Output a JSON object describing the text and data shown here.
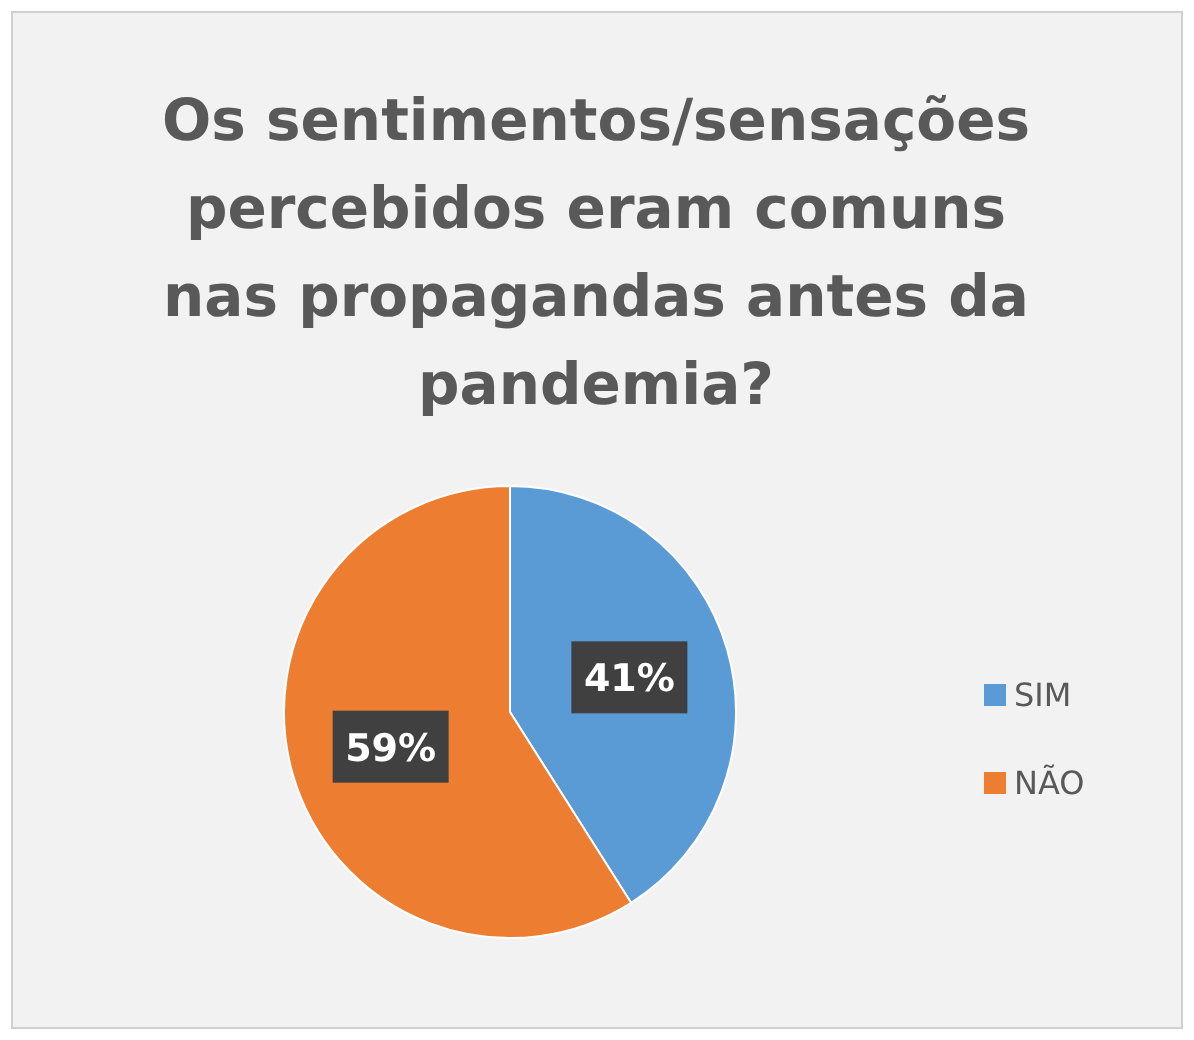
{
  "chart_data": {
    "type": "pie",
    "title": "Os sentimentos/sensações percebidos eram comuns nas propagandas antes da pandemia?",
    "categories": [
      "SIM",
      "NÃO"
    ],
    "values": [
      41,
      59
    ],
    "colors": [
      "#5b9bd5",
      "#ed7d31"
    ],
    "value_labels": [
      "41%",
      "59%"
    ],
    "legend": "right"
  }
}
